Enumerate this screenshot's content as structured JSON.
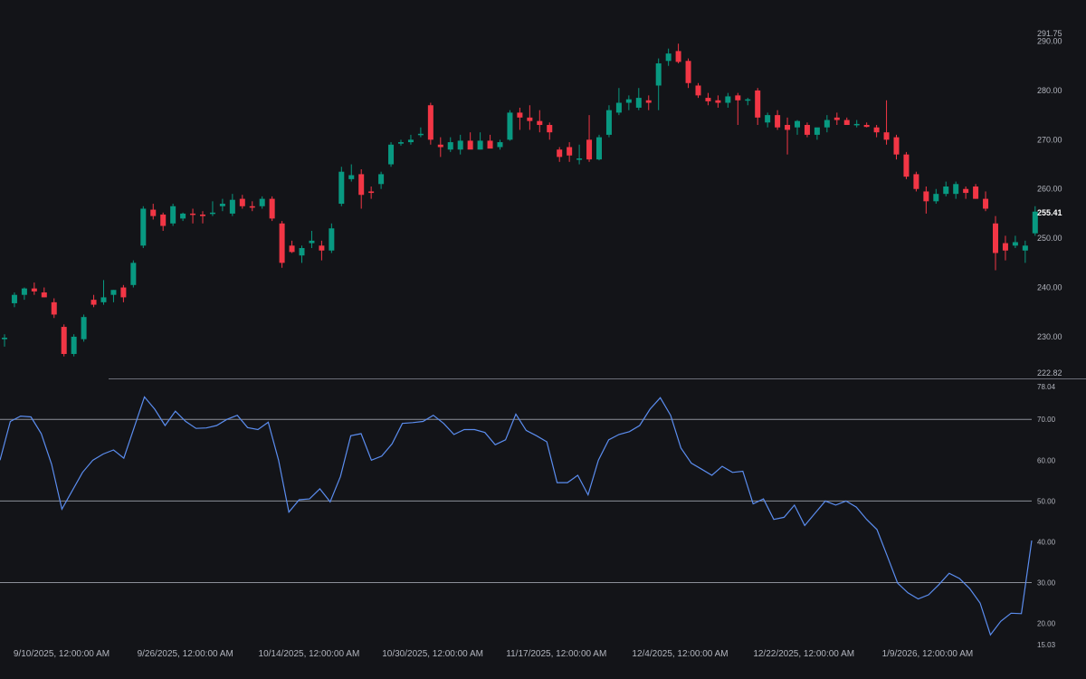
{
  "colors": {
    "background": "#131418",
    "up": "#089981",
    "down": "#f23645",
    "rsi_line": "#5b8def",
    "axis_text": "#b2b5be",
    "guide_line": "#8c8f99",
    "separator": "#6b6e77"
  },
  "price_axis": {
    "top_label": "291.75",
    "bottom_label": "222.82",
    "ticks": [
      "290.00",
      "280.00",
      "270.00",
      "260.00",
      "250.00",
      "240.00",
      "230.00"
    ],
    "last_price": "255.41"
  },
  "rsi_axis": {
    "top_label": "78.04",
    "bottom_label": "15.03",
    "ticks": [
      "70.00",
      "60.00",
      "50.00",
      "40.00",
      "30.00",
      "20.00"
    ]
  },
  "x_labels": [
    "9/10/2025, 12:00:00 AM",
    "9/26/2025, 12:00:00 AM",
    "10/14/2025, 12:00:00 AM",
    "10/30/2025, 12:00:00 AM",
    "11/17/2025, 12:00:00 AM",
    "12/4/2025, 12:00:00 AM",
    "12/22/2025, 12:00:00 AM",
    "1/9/2026, 12:00:00 AM"
  ],
  "chart_data": [
    {
      "type": "candlestick",
      "ylim": [
        222.82,
        291.75
      ],
      "candles": [
        {
          "o": 229.5,
          "h": 230.5,
          "l": 228.0,
          "c": 229.8
        },
        {
          "o": 236.8,
          "h": 239.0,
          "l": 236.0,
          "c": 238.5
        },
        {
          "o": 238.5,
          "h": 240.0,
          "l": 237.5,
          "c": 239.8
        },
        {
          "o": 239.8,
          "h": 241.0,
          "l": 238.5,
          "c": 239.2
        },
        {
          "o": 239.0,
          "h": 240.0,
          "l": 238.0,
          "c": 238.0
        },
        {
          "o": 237.0,
          "h": 237.8,
          "l": 233.8,
          "c": 234.5
        },
        {
          "o": 232.0,
          "h": 232.5,
          "l": 226.0,
          "c": 226.5
        },
        {
          "o": 226.5,
          "h": 230.5,
          "l": 226.0,
          "c": 230.0
        },
        {
          "o": 229.5,
          "h": 234.5,
          "l": 229.0,
          "c": 234.0
        },
        {
          "o": 237.5,
          "h": 238.5,
          "l": 236.0,
          "c": 236.5
        },
        {
          "o": 237.0,
          "h": 241.5,
          "l": 236.5,
          "c": 238.0
        },
        {
          "o": 238.5,
          "h": 239.5,
          "l": 237.0,
          "c": 239.5
        },
        {
          "o": 240.0,
          "h": 240.5,
          "l": 237.0,
          "c": 238.0
        },
        {
          "o": 240.5,
          "h": 245.5,
          "l": 240.0,
          "c": 245.0
        },
        {
          "o": 248.5,
          "h": 256.5,
          "l": 248.0,
          "c": 256.0
        },
        {
          "o": 255.8,
          "h": 257.0,
          "l": 253.8,
          "c": 254.5
        },
        {
          "o": 254.8,
          "h": 255.2,
          "l": 251.5,
          "c": 252.5
        },
        {
          "o": 253.0,
          "h": 257.0,
          "l": 252.5,
          "c": 256.5
        },
        {
          "o": 254.0,
          "h": 255.2,
          "l": 253.5,
          "c": 255.0
        },
        {
          "o": 255.0,
          "h": 256.0,
          "l": 253.0,
          "c": 254.8
        },
        {
          "o": 254.8,
          "h": 255.5,
          "l": 253.0,
          "c": 254.5
        },
        {
          "o": 255.0,
          "h": 257.5,
          "l": 254.5,
          "c": 255.2
        },
        {
          "o": 256.5,
          "h": 258.0,
          "l": 255.5,
          "c": 257.0
        },
        {
          "o": 255.0,
          "h": 259.0,
          "l": 254.5,
          "c": 257.8
        },
        {
          "o": 258.0,
          "h": 258.8,
          "l": 256.0,
          "c": 256.5
        },
        {
          "o": 256.5,
          "h": 257.5,
          "l": 255.5,
          "c": 256.2
        },
        {
          "o": 256.5,
          "h": 258.5,
          "l": 256.0,
          "c": 258.0
        },
        {
          "o": 258.0,
          "h": 258.5,
          "l": 253.5,
          "c": 254.0
        },
        {
          "o": 253.0,
          "h": 253.5,
          "l": 244.0,
          "c": 245.0
        },
        {
          "o": 248.5,
          "h": 249.5,
          "l": 247.0,
          "c": 247.2
        },
        {
          "o": 246.5,
          "h": 248.5,
          "l": 245.0,
          "c": 248.0
        },
        {
          "o": 249.0,
          "h": 251.5,
          "l": 248.0,
          "c": 249.5
        },
        {
          "o": 248.5,
          "h": 249.5,
          "l": 245.5,
          "c": 247.5
        },
        {
          "o": 247.5,
          "h": 253.0,
          "l": 247.0,
          "c": 252.0
        },
        {
          "o": 257.0,
          "h": 264.5,
          "l": 256.5,
          "c": 263.5
        },
        {
          "o": 262.0,
          "h": 265.0,
          "l": 261.5,
          "c": 262.8
        },
        {
          "o": 263.0,
          "h": 264.0,
          "l": 256.0,
          "c": 258.8
        },
        {
          "o": 259.5,
          "h": 260.5,
          "l": 258.0,
          "c": 259.2
        },
        {
          "o": 261.0,
          "h": 263.5,
          "l": 260.0,
          "c": 263.0
        },
        {
          "o": 265.0,
          "h": 269.5,
          "l": 264.5,
          "c": 269.0
        },
        {
          "o": 269.2,
          "h": 270.0,
          "l": 268.8,
          "c": 269.5
        },
        {
          "o": 269.5,
          "h": 271.0,
          "l": 269.0,
          "c": 270.0
        },
        {
          "o": 271.0,
          "h": 272.5,
          "l": 270.5,
          "c": 271.2
        },
        {
          "o": 277.0,
          "h": 277.5,
          "l": 269.0,
          "c": 270.0
        },
        {
          "o": 269.0,
          "h": 270.5,
          "l": 266.5,
          "c": 268.5
        },
        {
          "o": 268.0,
          "h": 270.5,
          "l": 267.5,
          "c": 269.5
        },
        {
          "o": 268.0,
          "h": 271.0,
          "l": 267.0,
          "c": 269.8
        },
        {
          "o": 269.8,
          "h": 271.5,
          "l": 268.5,
          "c": 268.0
        },
        {
          "o": 268.0,
          "h": 271.5,
          "l": 268.0,
          "c": 269.8
        },
        {
          "o": 269.8,
          "h": 271.0,
          "l": 268.5,
          "c": 268.2
        },
        {
          "o": 268.5,
          "h": 270.0,
          "l": 268.0,
          "c": 269.5
        },
        {
          "o": 270.0,
          "h": 276.0,
          "l": 269.8,
          "c": 275.5
        },
        {
          "o": 275.5,
          "h": 276.5,
          "l": 272.0,
          "c": 274.5
        },
        {
          "o": 274.5,
          "h": 277.0,
          "l": 272.0,
          "c": 273.8
        },
        {
          "o": 273.8,
          "h": 276.0,
          "l": 271.5,
          "c": 273.0
        },
        {
          "o": 273.0,
          "h": 273.5,
          "l": 270.0,
          "c": 271.5
        },
        {
          "o": 268.0,
          "h": 268.5,
          "l": 265.5,
          "c": 266.5
        },
        {
          "o": 268.5,
          "h": 269.5,
          "l": 265.5,
          "c": 266.8
        },
        {
          "o": 266.0,
          "h": 269.0,
          "l": 265.0,
          "c": 266.2
        },
        {
          "o": 270.0,
          "h": 275.0,
          "l": 265.5,
          "c": 266.0
        },
        {
          "o": 266.0,
          "h": 271.0,
          "l": 265.8,
          "c": 270.5
        },
        {
          "o": 271.0,
          "h": 277.0,
          "l": 270.5,
          "c": 276.0
        },
        {
          "o": 275.5,
          "h": 280.5,
          "l": 275.0,
          "c": 277.5
        },
        {
          "o": 277.5,
          "h": 279.0,
          "l": 276.0,
          "c": 278.2
        },
        {
          "o": 276.5,
          "h": 280.5,
          "l": 276.0,
          "c": 278.5
        },
        {
          "o": 278.0,
          "h": 279.0,
          "l": 276.0,
          "c": 277.5
        },
        {
          "o": 281.0,
          "h": 286.5,
          "l": 276.0,
          "c": 285.5
        },
        {
          "o": 286.0,
          "h": 288.5,
          "l": 285.0,
          "c": 287.5
        },
        {
          "o": 288.0,
          "h": 289.5,
          "l": 285.5,
          "c": 285.8
        },
        {
          "o": 286.0,
          "h": 286.5,
          "l": 280.5,
          "c": 281.5
        },
        {
          "o": 281.0,
          "h": 281.5,
          "l": 278.5,
          "c": 279.0
        },
        {
          "o": 278.5,
          "h": 279.5,
          "l": 277.0,
          "c": 277.8
        },
        {
          "o": 278.0,
          "h": 279.0,
          "l": 276.5,
          "c": 277.5
        },
        {
          "o": 277.5,
          "h": 279.5,
          "l": 276.5,
          "c": 278.8
        },
        {
          "o": 279.0,
          "h": 279.5,
          "l": 273.0,
          "c": 278.0
        },
        {
          "o": 278.0,
          "h": 278.5,
          "l": 277.0,
          "c": 278.2
        },
        {
          "o": 280.0,
          "h": 280.5,
          "l": 273.0,
          "c": 274.5
        },
        {
          "o": 273.5,
          "h": 275.5,
          "l": 272.5,
          "c": 275.0
        },
        {
          "o": 275.0,
          "h": 276.0,
          "l": 272.0,
          "c": 272.5
        },
        {
          "o": 273.0,
          "h": 274.5,
          "l": 267.0,
          "c": 272.0
        },
        {
          "o": 272.5,
          "h": 274.0,
          "l": 271.0,
          "c": 273.8
        },
        {
          "o": 273.0,
          "h": 273.5,
          "l": 270.5,
          "c": 271.0
        },
        {
          "o": 271.0,
          "h": 272.0,
          "l": 270.0,
          "c": 272.5
        },
        {
          "o": 272.5,
          "h": 275.0,
          "l": 271.5,
          "c": 274.0
        },
        {
          "o": 274.5,
          "h": 275.5,
          "l": 273.0,
          "c": 274.0
        },
        {
          "o": 274.0,
          "h": 274.5,
          "l": 273.0,
          "c": 273.0
        },
        {
          "o": 273.0,
          "h": 274.0,
          "l": 272.5,
          "c": 273.2
        },
        {
          "o": 273.0,
          "h": 273.5,
          "l": 272.5,
          "c": 272.6
        },
        {
          "o": 272.5,
          "h": 273.0,
          "l": 270.5,
          "c": 271.5
        },
        {
          "o": 271.5,
          "h": 278.0,
          "l": 269.0,
          "c": 270.0
        },
        {
          "o": 270.5,
          "h": 271.0,
          "l": 266.0,
          "c": 267.0
        },
        {
          "o": 267.0,
          "h": 267.5,
          "l": 262.0,
          "c": 262.5
        },
        {
          "o": 263.0,
          "h": 263.5,
          "l": 259.5,
          "c": 260.0
        },
        {
          "o": 259.5,
          "h": 260.5,
          "l": 255.0,
          "c": 257.5
        },
        {
          "o": 257.5,
          "h": 260.0,
          "l": 257.0,
          "c": 259.0
        },
        {
          "o": 259.0,
          "h": 261.5,
          "l": 258.5,
          "c": 260.5
        },
        {
          "o": 259.0,
          "h": 261.5,
          "l": 258.0,
          "c": 261.0
        },
        {
          "o": 260.0,
          "h": 260.5,
          "l": 258.0,
          "c": 259.2
        },
        {
          "o": 260.5,
          "h": 261.0,
          "l": 258.0,
          "c": 258.0
        },
        {
          "o": 258.0,
          "h": 259.5,
          "l": 255.5,
          "c": 256.0
        },
        {
          "o": 253.0,
          "h": 254.5,
          "l": 243.5,
          "c": 247.0
        },
        {
          "o": 249.0,
          "h": 250.5,
          "l": 245.5,
          "c": 247.5
        },
        {
          "o": 248.5,
          "h": 250.5,
          "l": 248.0,
          "c": 249.2
        },
        {
          "o": 247.5,
          "h": 249.5,
          "l": 245.0,
          "c": 248.5
        },
        {
          "o": 251.0,
          "h": 256.5,
          "l": 250.5,
          "c": 255.4
        }
      ]
    },
    {
      "type": "line",
      "ylim": [
        15.03,
        78.04
      ],
      "guides": [
        70,
        50,
        30
      ],
      "values": [
        60,
        69.5,
        70.8,
        70.6,
        66.5,
        59,
        48,
        52.5,
        57,
        60,
        61.5,
        62.5,
        60.5,
        68,
        75.5,
        72.5,
        68.5,
        72,
        69.5,
        67.8,
        67.9,
        68.5,
        70,
        71,
        68,
        67.5,
        69.3,
        60,
        47.3,
        50.3,
        50.5,
        53,
        49.8,
        56,
        66,
        66.5,
        60,
        61,
        64,
        69,
        69.2,
        69.5,
        71,
        69,
        66.3,
        67.5,
        67.5,
        66.8,
        63.8,
        65,
        71.3,
        67.3,
        66,
        64.5,
        54.5,
        54.5,
        56.3,
        51.5,
        60,
        65,
        66.3,
        67,
        68.5,
        72.5,
        75.3,
        71,
        63,
        59.3,
        57.8,
        56.3,
        58.5,
        57,
        57.3,
        49.3,
        50.5,
        45.5,
        46,
        49,
        44,
        47,
        50,
        49,
        50,
        48.5,
        45.5,
        43,
        36.5,
        29.9,
        27.5,
        26,
        27,
        29.5,
        32.3,
        31,
        28.5,
        25,
        17.2,
        20.5,
        22.5,
        22.4,
        40.3
      ]
    }
  ]
}
